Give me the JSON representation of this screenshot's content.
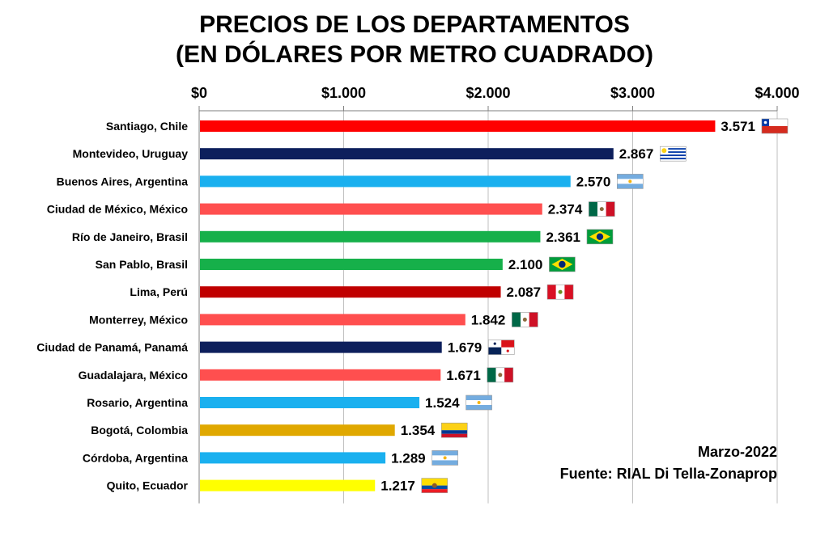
{
  "chart_data": {
    "type": "bar",
    "orientation": "horizontal",
    "title_line1": "PRECIOS DE LOS DEPARTAMENTOS",
    "title_line2": "(EN DÓLARES POR METRO CUADRADO)",
    "xlim": [
      0,
      4000
    ],
    "xticks": [
      0,
      1000,
      2000,
      3000,
      4000
    ],
    "xtick_labels": [
      "$0",
      "$1.000",
      "$2.000",
      "$3.000",
      "$4.000"
    ],
    "axis_position": "top",
    "grid": true,
    "legend": "none",
    "categories": [
      "Santiago, Chile",
      "Montevideo, Uruguay",
      "Buenos Aires, Argentina",
      "Ciudad de México, México",
      "Río de Janeiro, Brasil",
      "San Pablo, Brasil",
      "Lima, Perú",
      "Monterrey, México",
      "Ciudad de Panamá, Panamá",
      "Guadalajara, México",
      "Rosario, Argentina",
      "Bogotá, Colombia",
      "Córdoba, Argentina",
      "Quito, Ecuador"
    ],
    "values": [
      3571,
      2867,
      2570,
      2374,
      2361,
      2100,
      2087,
      1842,
      1679,
      1671,
      1524,
      1354,
      1289,
      1217
    ],
    "value_labels": [
      "3.571",
      "2.867",
      "2.570",
      "2.374",
      "2.361",
      "2.100",
      "2.087",
      "1.842",
      "1.679",
      "1.671",
      "1.524",
      "1.354",
      "1.289",
      "1.217"
    ],
    "bar_colors": [
      "#ff0000",
      "#0d1f5c",
      "#1ab0ef",
      "#ff4f4f",
      "#16b04a",
      "#16b04a",
      "#c00000",
      "#ff4f4f",
      "#0d1f5c",
      "#ff4f4f",
      "#1ab0ef",
      "#e0a800",
      "#1ab0ef",
      "#ffff00"
    ],
    "flags": [
      "chile-flag",
      "uruguay-flag",
      "argentina-flag",
      "mexico-flag",
      "brazil-flag",
      "brazil-flag",
      "peru-flag",
      "mexico-flag",
      "panama-flag",
      "mexico-flag",
      "argentina-flag",
      "colombia-flag",
      "argentina-flag",
      "ecuador-flag"
    ]
  },
  "note": {
    "date": "Marzo-2022",
    "source": "Fuente: RIAL Di Tella-Zonaprop"
  }
}
